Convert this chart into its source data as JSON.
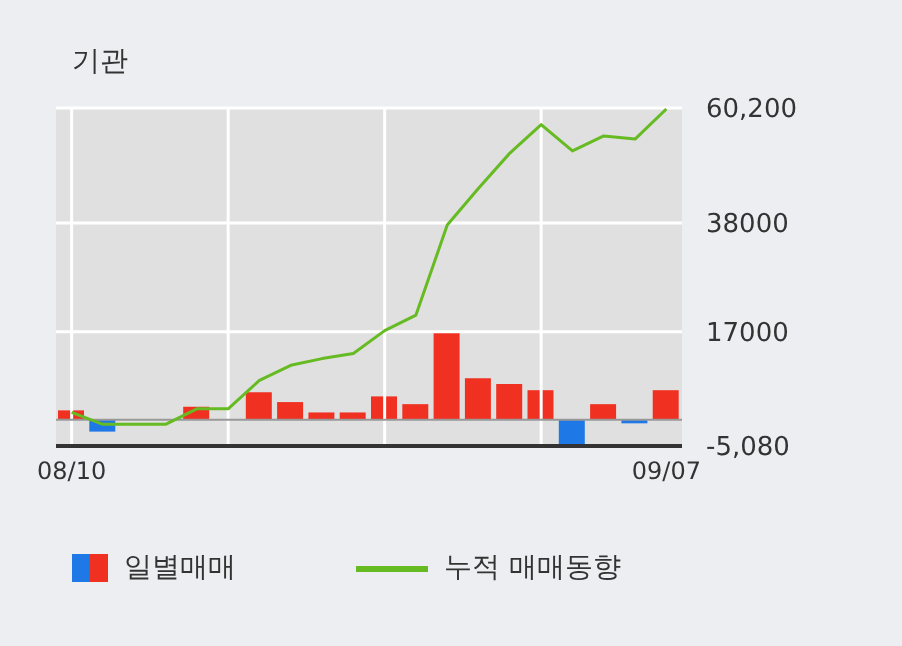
{
  "chart_data": {
    "type": "bar",
    "title": "기관",
    "categories": [
      "08/10",
      null,
      null,
      null,
      null,
      null,
      null,
      null,
      null,
      null,
      null,
      null,
      null,
      null,
      null,
      null,
      null,
      null,
      null,
      "09/07"
    ],
    "series": [
      {
        "name": "일별매매",
        "colors": [
          "#f03020",
          "#1e78e6",
          "#f03020",
          "#f03020",
          "#f03020",
          "#f03020",
          "#f03020",
          "#f03020",
          "#f03020",
          "#f03020",
          "#f03020",
          "#f03020",
          "#f03020",
          "#f03020",
          "#f03020",
          "#f03020",
          "#1e78e6",
          "#f03020",
          "#1e78e6",
          "#f03020"
        ],
        "values": [
          1800,
          -2300,
          0,
          0,
          2500,
          0,
          5300,
          3400,
          1400,
          1400,
          4500,
          3000,
          17000,
          8000,
          6900,
          5700,
          -5000,
          3000,
          -700,
          5700
        ]
      },
      {
        "name": "누적 매매동향",
        "type": "line",
        "color": "#66bb22",
        "values": [
          1400,
          -900,
          -900,
          -900,
          2100,
          2100,
          7600,
          10500,
          11800,
          12800,
          17200,
          20200,
          37600,
          44700,
          51500,
          57000,
          51900,
          54800,
          54200,
          60000
        ]
      }
    ],
    "ylim": [
      -5080,
      60200
    ],
    "yticks": [
      {
        "value": -5080,
        "label": "-5,080"
      },
      17000,
      38000,
      {
        "value": 60200,
        "label": "60,200"
      }
    ],
    "grid": true,
    "legend": "bottom",
    "marker": "none",
    "ref_lines": [
      {
        "axis": "y",
        "value": 0,
        "color": "#999999"
      }
    ]
  }
}
